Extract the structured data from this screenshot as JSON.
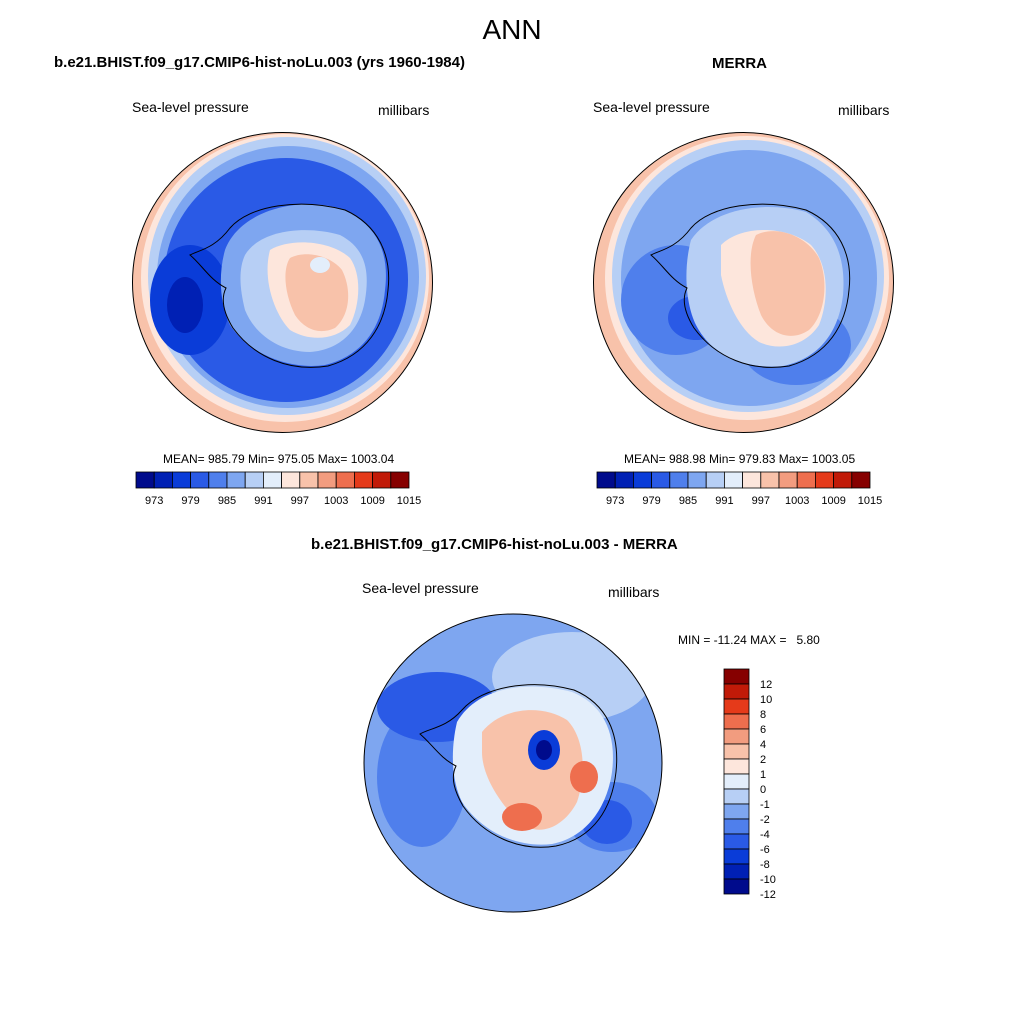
{
  "figure": {
    "title": "ANN"
  },
  "colors": {
    "palette": [
      "#000b8c",
      "#0020b4",
      "#0a3cd8",
      "#2a5ae6",
      "#4f7fec",
      "#7ea6f0",
      "#b7cff5",
      "#e3eefb",
      "#fde6dc",
      "#f8c2aa",
      "#f29c7f",
      "#ee6e4e",
      "#e53a1a",
      "#c11a08",
      "#860000"
    ],
    "land_outline": "#000000"
  },
  "chart_data": [
    {
      "type": "heatmap",
      "title": "b.e21.BHIST.f09_g17.CMIP6-hist-noLu.003 (yrs 1960-1984)",
      "variable": "Sea-level pressure",
      "units": "millibars",
      "stats": "MEAN= 985.79  Min= 975.05  Max= 1003.04",
      "mean": 985.79,
      "min": 975.05,
      "max": 1003.04,
      "projection": "south-polar stereographic",
      "colorbar": {
        "orientation": "horizontal",
        "levels": [
          973,
          976,
          979,
          982,
          985,
          988,
          991,
          994,
          997,
          1000,
          1003,
          1006,
          1009,
          1012,
          1015
        ],
        "tick_labels": [
          "973",
          "979",
          "985",
          "991",
          "997",
          "1003",
          "1009",
          "1015"
        ]
      }
    },
    {
      "type": "heatmap",
      "title": "MERRA",
      "variable": "Sea-level pressure",
      "units": "millibars",
      "stats": "MEAN= 988.98  Min= 979.83  Max= 1003.05",
      "mean": 988.98,
      "min": 979.83,
      "max": 1003.05,
      "projection": "south-polar stereographic",
      "colorbar": {
        "orientation": "horizontal",
        "levels": [
          973,
          976,
          979,
          982,
          985,
          988,
          991,
          994,
          997,
          1000,
          1003,
          1006,
          1009,
          1012,
          1015
        ],
        "tick_labels": [
          "973",
          "979",
          "985",
          "991",
          "997",
          "1003",
          "1009",
          "1015"
        ]
      }
    },
    {
      "type": "heatmap",
      "title": "b.e21.BHIST.f09_g17.CMIP6-hist-noLu.003 - MERRA",
      "variable": "Sea-level pressure",
      "units": "millibars",
      "stats": "MIN = -11.24 MAX =   5.80",
      "min": -11.24,
      "max": 5.8,
      "projection": "south-polar stereographic",
      "colorbar": {
        "orientation": "vertical",
        "levels": [
          -12,
          -10,
          -8,
          -6,
          -4,
          -2,
          -1,
          0,
          1,
          2,
          4,
          6,
          8,
          10,
          12
        ],
        "tick_labels": [
          "12",
          "10",
          "8",
          "6",
          "4",
          "2",
          "1",
          "0",
          "-1",
          "-2",
          "-4",
          "-6",
          "-8",
          "-10",
          "-12"
        ]
      }
    }
  ]
}
